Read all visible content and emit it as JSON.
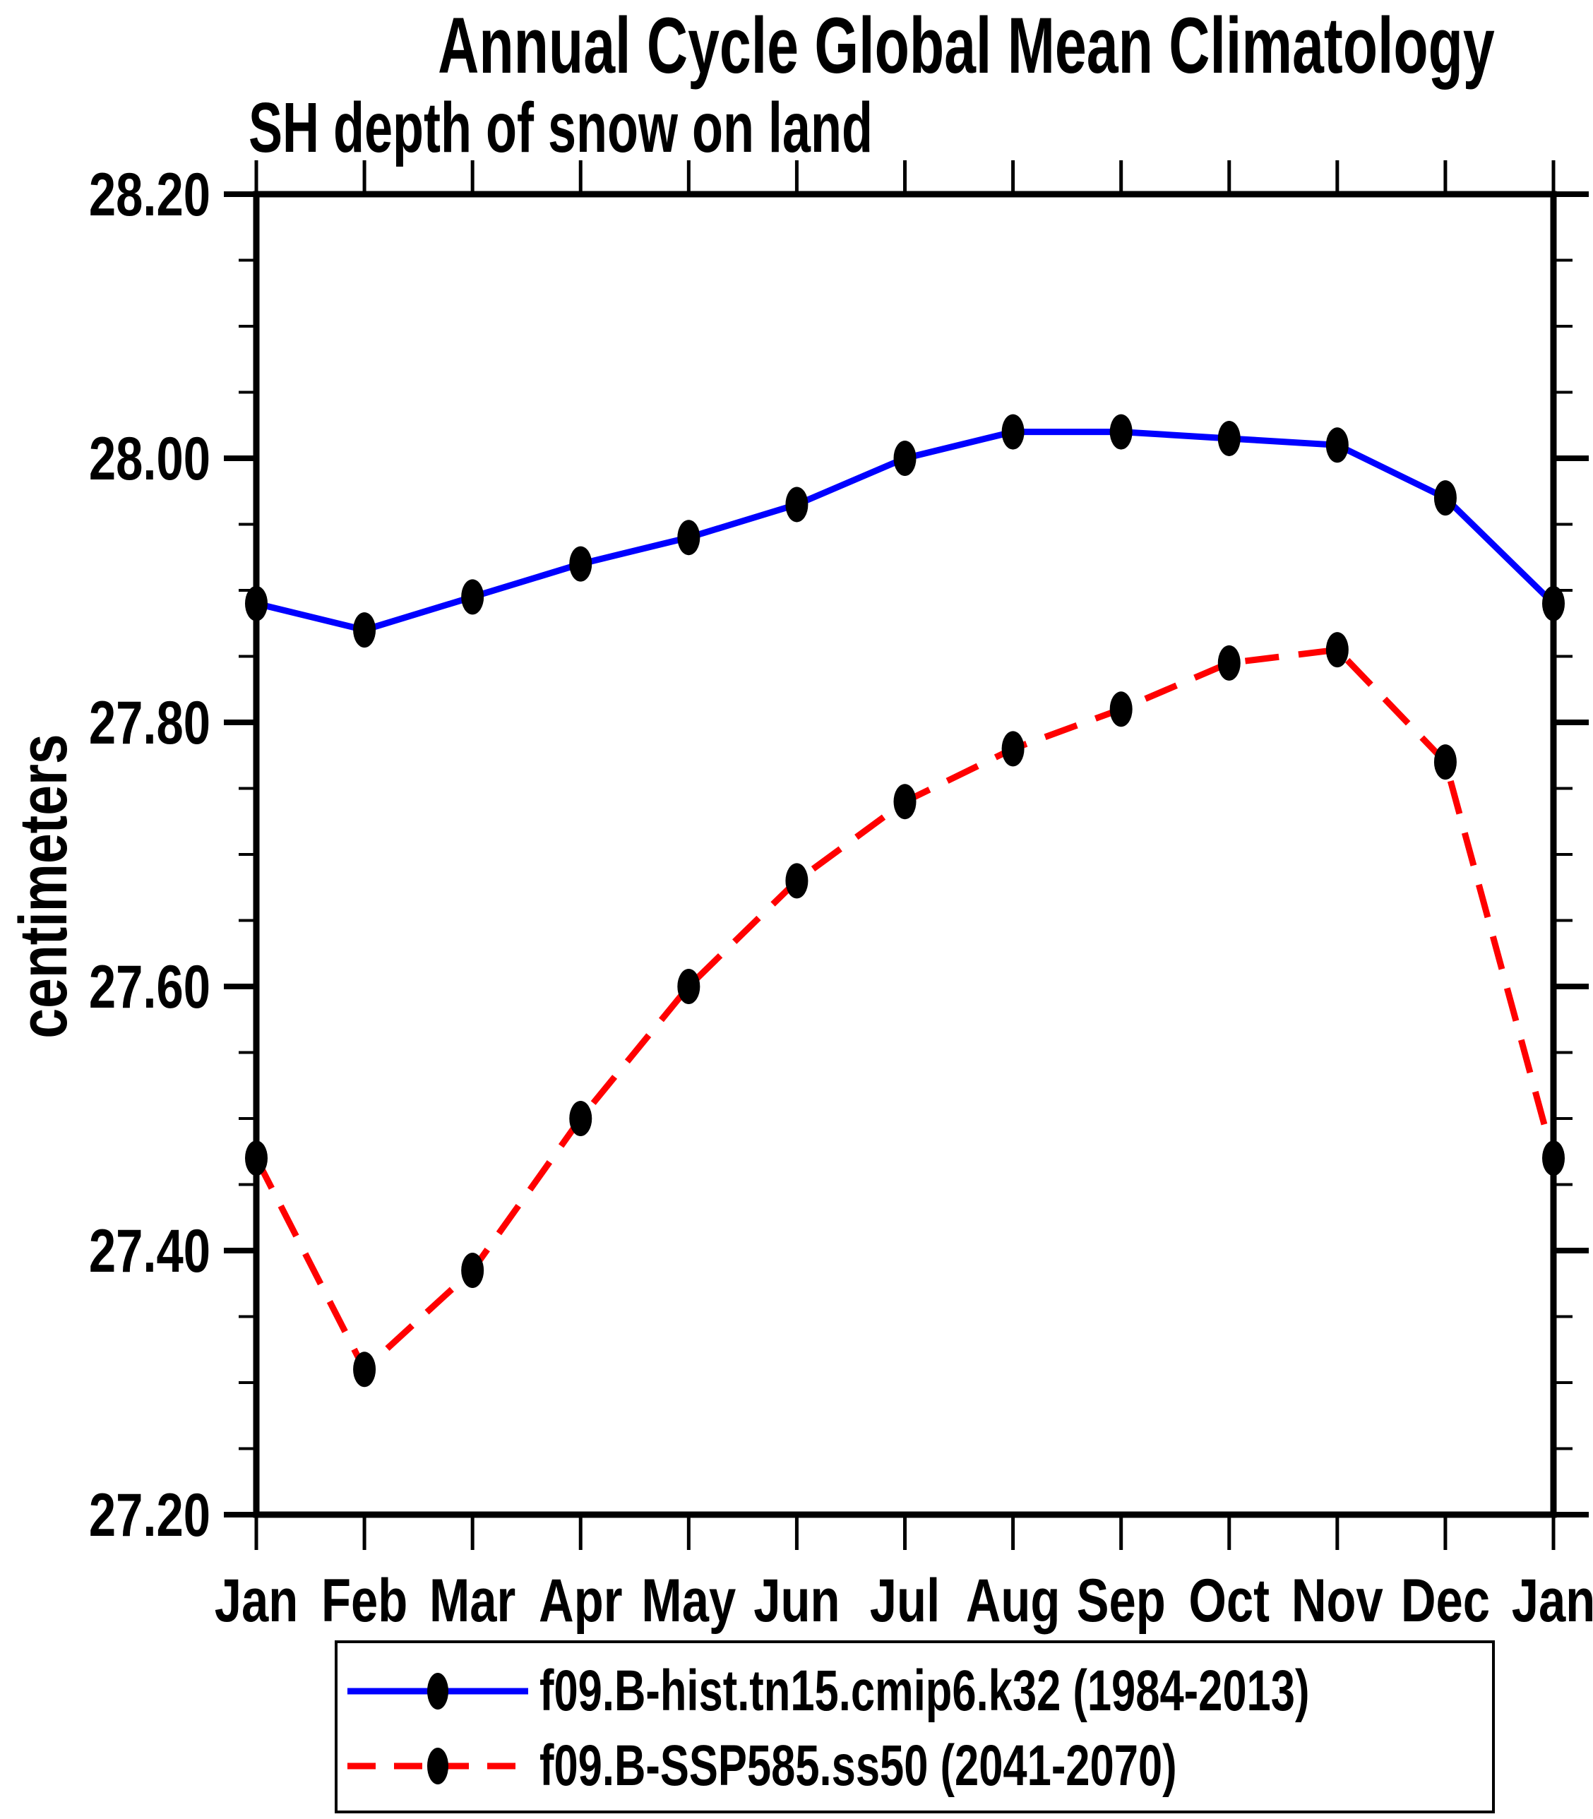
{
  "chart_data": {
    "type": "line",
    "title": "Annual Cycle Global Mean Climatology",
    "subtitle": "SH depth of snow on land",
    "ylabel": "centimeters",
    "xlabel": "",
    "categories": [
      "Jan",
      "Feb",
      "Mar",
      "Apr",
      "May",
      "Jun",
      "Jul",
      "Aug",
      "Sep",
      "Oct",
      "Nov",
      "Dec",
      "Jan"
    ],
    "ylim": [
      27.2,
      28.2
    ],
    "y_major_step": 0.2,
    "y_minor_step": 0.05,
    "y_tick_labels": [
      "28.20",
      "28.00",
      "27.80",
      "27.60",
      "27.40",
      "27.20"
    ],
    "grid": false,
    "legend_position": "bottom",
    "axis_color": "#000000",
    "marker_color": "#000000",
    "series": [
      {
        "name": "f09.B-hist.tn15.cmip6.k32 (1984-2013)",
        "color": "#0000ff",
        "line_style": "solid",
        "marker": "filled-ellipse",
        "values": [
          27.89,
          27.87,
          27.895,
          27.92,
          27.94,
          27.965,
          28.0,
          28.02,
          28.02,
          28.015,
          28.01,
          27.97,
          27.89
        ]
      },
      {
        "name": "f09.B-SSP585.ss50 (2041-2070)",
        "color": "#ff0000",
        "line_style": "dashed",
        "marker": "filled-ellipse",
        "values": [
          27.47,
          27.31,
          27.385,
          27.5,
          27.6,
          27.68,
          27.74,
          27.78,
          27.81,
          27.845,
          27.855,
          27.77,
          27.47
        ]
      }
    ]
  }
}
